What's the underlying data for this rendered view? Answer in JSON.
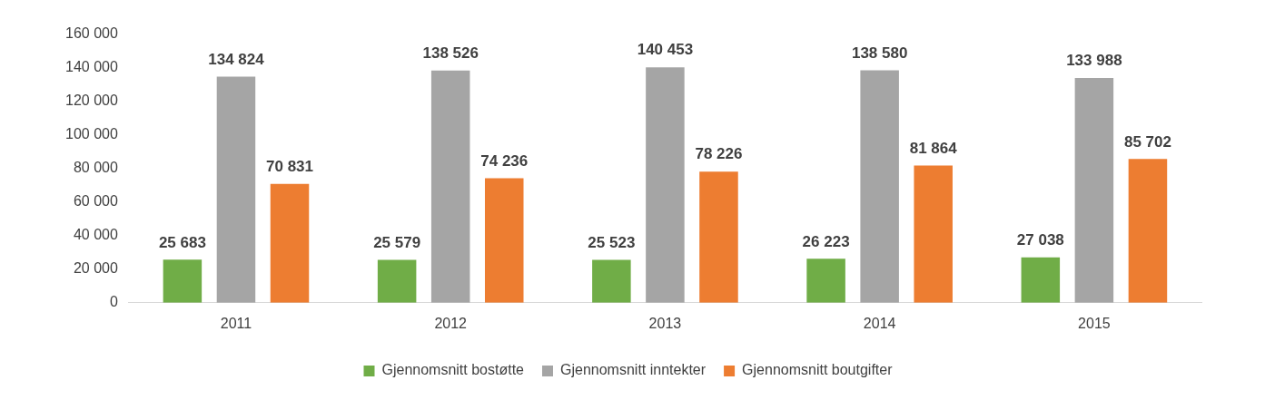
{
  "chart_data": {
    "type": "bar",
    "categories": [
      "2011",
      "2012",
      "2013",
      "2014",
      "2015"
    ],
    "series": [
      {
        "name": "Gjennomsnitt bostøtte",
        "color": "#70ad47",
        "values": [
          25683,
          25579,
          25523,
          26223,
          27038
        ]
      },
      {
        "name": "Gjennomsnitt inntekter",
        "color": "#a5a5a5",
        "values": [
          134824,
          138526,
          140453,
          138580,
          133988
        ]
      },
      {
        "name": "Gjennomsnitt boutgifter",
        "color": "#ed7d31",
        "values": [
          70831,
          74236,
          78226,
          81864,
          85702
        ]
      }
    ],
    "ylim": [
      0,
      160000
    ],
    "yticks": [
      {
        "value": 0,
        "label": "0"
      },
      {
        "value": 20000,
        "label": "20 000"
      },
      {
        "value": 40000,
        "label": "40 000"
      },
      {
        "value": 60000,
        "label": "60 000"
      },
      {
        "value": 80000,
        "label": "80 000"
      },
      {
        "value": 100000,
        "label": "100 000"
      },
      {
        "value": 120000,
        "label": "120 000"
      },
      {
        "value": 140000,
        "label": "140 000"
      },
      {
        "value": 160000,
        "label": "160 000"
      }
    ],
    "grid": false,
    "legend": "bottom",
    "data_labels": true
  }
}
